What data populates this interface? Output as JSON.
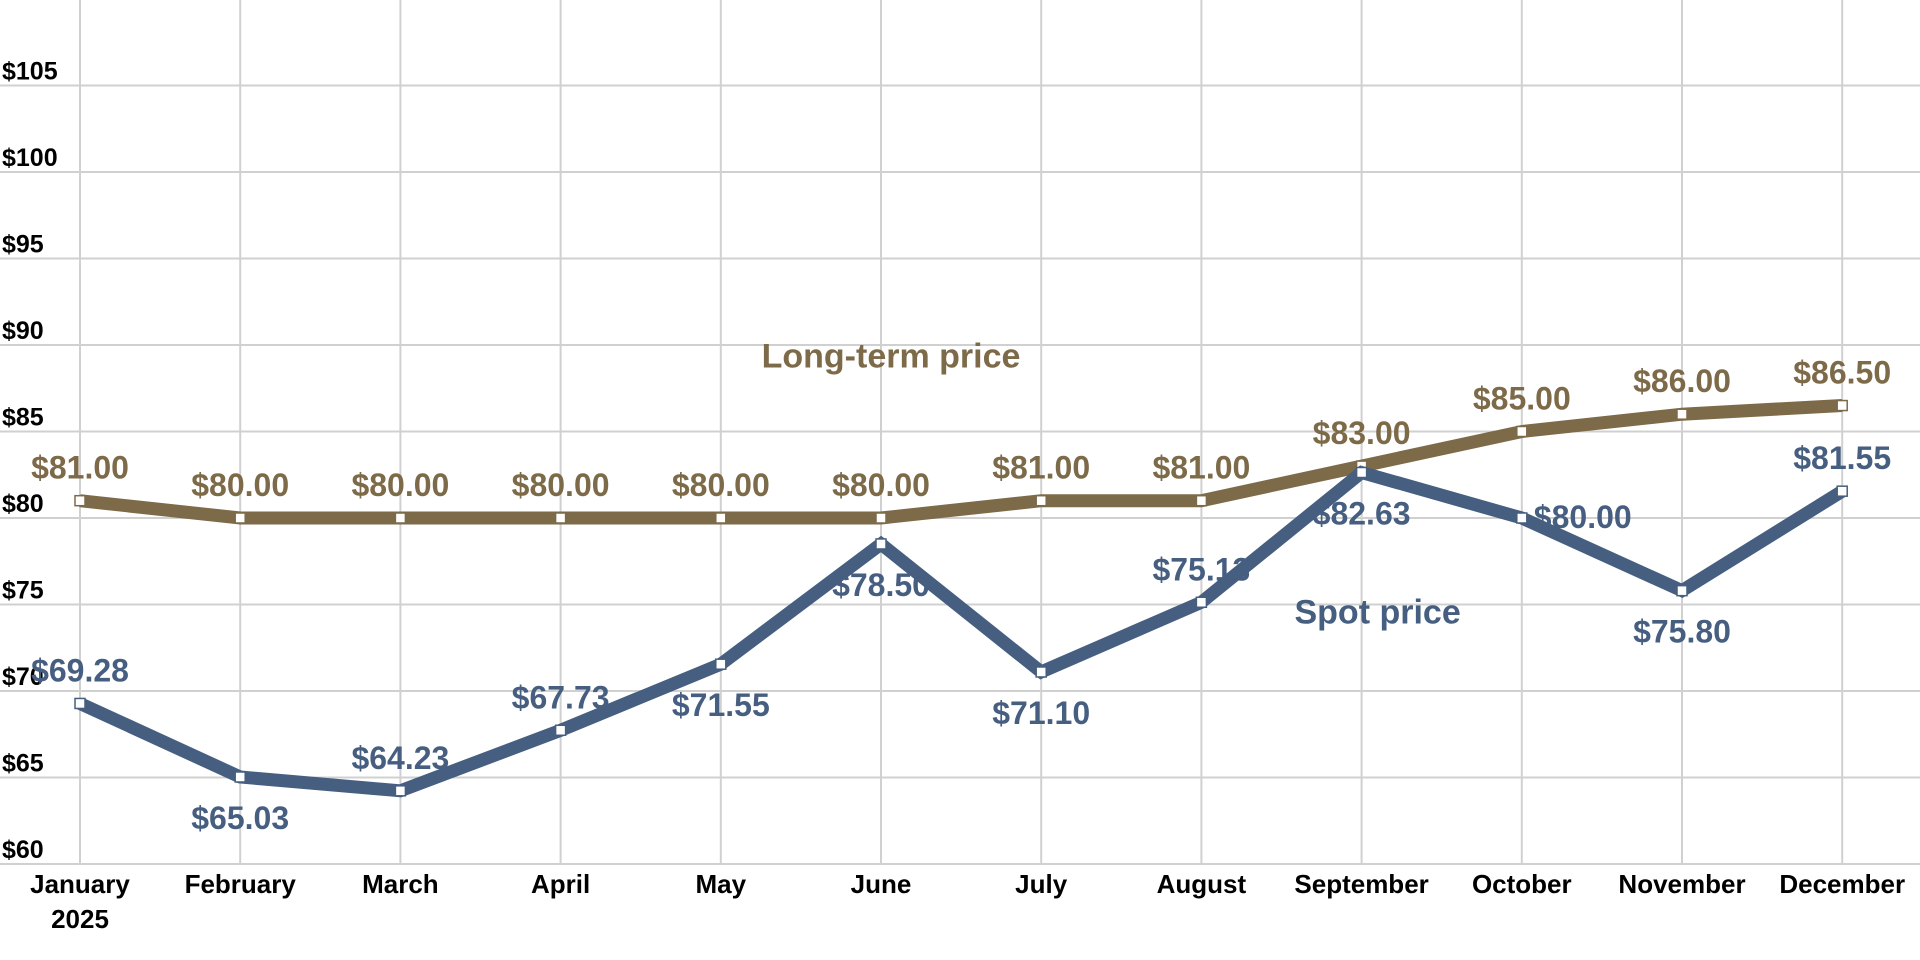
{
  "chart_data": {
    "type": "line",
    "title": "",
    "xlabel": "",
    "ylabel": "",
    "categories": [
      "January",
      "February",
      "March",
      "April",
      "May",
      "June",
      "July",
      "August",
      "September",
      "October",
      "November",
      "December"
    ],
    "x_sublabels": [
      "2025",
      "",
      "",
      "",
      "",
      "",
      "",
      "",
      "",
      "",
      "",
      ""
    ],
    "ylim": [
      60,
      109
    ],
    "yticks": [
      60,
      65,
      70,
      75,
      80,
      85,
      90,
      95,
      100,
      105
    ],
    "ytick_labels": [
      "$60",
      "$65",
      "$70",
      "$75",
      "$80",
      "$85",
      "$90",
      "$95",
      "$100",
      "$105"
    ],
    "grid": true,
    "legend": "none",
    "series": [
      {
        "name": "Long-term price",
        "color": "#7d6a48",
        "values": [
          81.0,
          80.0,
          80.0,
          80.0,
          80.0,
          80.0,
          81.0,
          81.0,
          83.0,
          85.0,
          86.0,
          86.5
        ],
        "labels": [
          "$81.00",
          "$80.00",
          "$80.00",
          "$80.00",
          "$80.00",
          "$80.00",
          "$81.00",
          "$81.00",
          "$83.00",
          "$85.00",
          "$86.00",
          "$86.50"
        ],
        "label_positions": [
          "above",
          "above",
          "above",
          "above",
          "above",
          "above",
          "above",
          "above",
          "above",
          "above",
          "above",
          "above"
        ]
      },
      {
        "name": "Spot price",
        "color": "#465e80",
        "values": [
          69.28,
          65.03,
          64.23,
          67.73,
          71.55,
          78.5,
          71.1,
          75.13,
          82.63,
          80.0,
          75.8,
          81.55
        ],
        "labels": [
          "$69.28",
          "$65.03",
          "$64.23",
          "$67.73",
          "$71.55",
          "$78.50",
          "$71.10",
          "$75.13",
          "$82.63",
          "$80.00",
          "$75.80",
          "$81.55"
        ],
        "label_positions": [
          "above",
          "below",
          "above",
          "above",
          "below",
          "below",
          "below",
          "above",
          "below",
          "right",
          "below",
          "above"
        ]
      }
    ]
  }
}
